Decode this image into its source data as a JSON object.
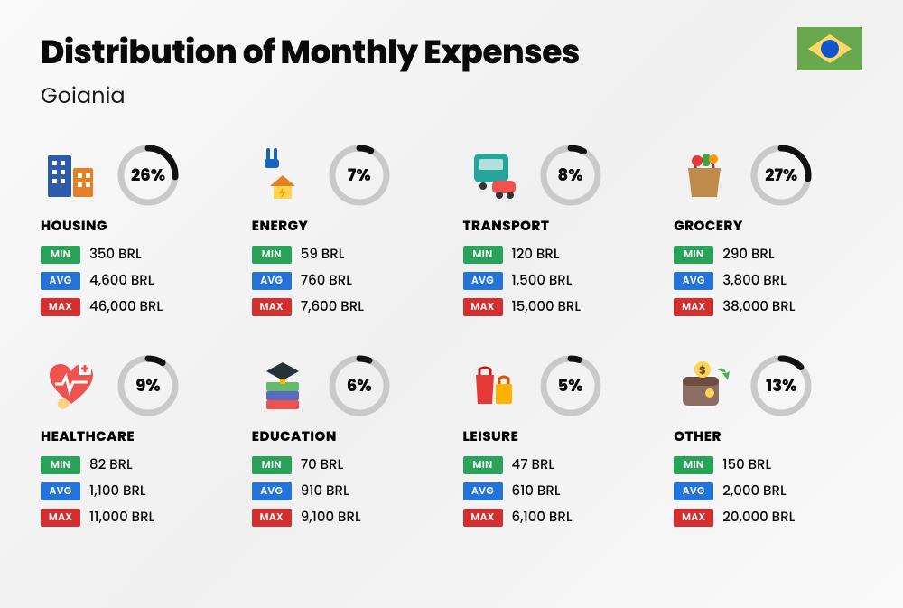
{
  "title": "Distribution of Monthly Expenses",
  "subtitle": "Goiania",
  "currency": "BRL",
  "labels": {
    "min": "MIN",
    "avg": "AVG",
    "max": "MAX"
  },
  "colors": {
    "min_badge": "#2aa35a",
    "avg_badge": "#2373d8",
    "max_badge": "#d32f2f",
    "ring_fg": "#111111",
    "ring_bg": "#c9c9c9",
    "flag_green": "#6aa84f",
    "flag_yellow": "#ffd966",
    "flag_blue": "#1155cc"
  },
  "ring": {
    "radius": 30,
    "stroke": 7,
    "circumference": 188.5
  },
  "categories": [
    {
      "name": "HOUSING",
      "icon": "buildings-icon",
      "percent": 26,
      "min": "350 BRL",
      "avg": "4,600 BRL",
      "max": "46,000 BRL"
    },
    {
      "name": "ENERGY",
      "icon": "energy-icon",
      "percent": 7,
      "min": "59 BRL",
      "avg": "760 BRL",
      "max": "7,600 BRL"
    },
    {
      "name": "TRANSPORT",
      "icon": "transport-icon",
      "percent": 8,
      "min": "120 BRL",
      "avg": "1,500 BRL",
      "max": "15,000 BRL"
    },
    {
      "name": "GROCERY",
      "icon": "grocery-icon",
      "percent": 27,
      "min": "290 BRL",
      "avg": "3,800 BRL",
      "max": "38,000 BRL"
    },
    {
      "name": "HEALTHCARE",
      "icon": "healthcare-icon",
      "percent": 9,
      "min": "82 BRL",
      "avg": "1,100 BRL",
      "max": "11,000 BRL"
    },
    {
      "name": "EDUCATION",
      "icon": "education-icon",
      "percent": 6,
      "min": "70 BRL",
      "avg": "910 BRL",
      "max": "9,100 BRL"
    },
    {
      "name": "LEISURE",
      "icon": "leisure-icon",
      "percent": 5,
      "min": "47 BRL",
      "avg": "610 BRL",
      "max": "6,100 BRL"
    },
    {
      "name": "OTHER",
      "icon": "wallet-icon",
      "percent": 13,
      "min": "150 BRL",
      "avg": "2,000 BRL",
      "max": "20,000 BRL"
    }
  ]
}
